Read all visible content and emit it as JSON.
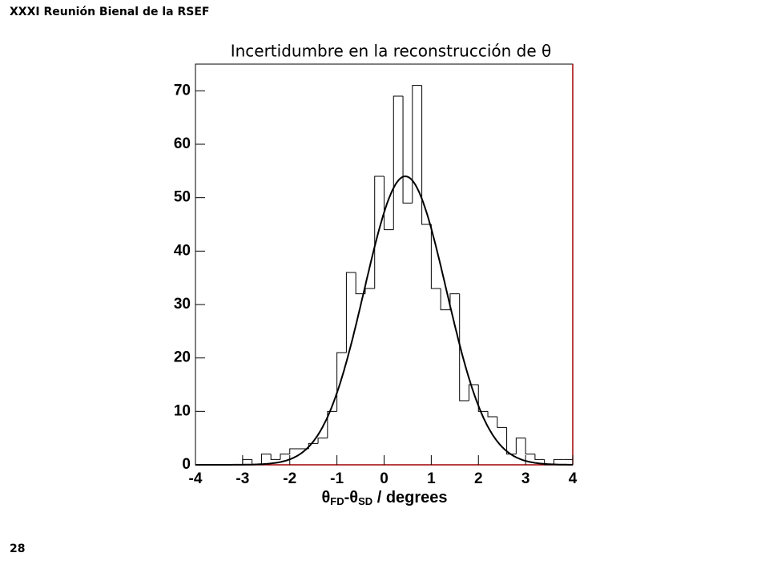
{
  "header": "XXXI Reunión Bienal de la RSEF",
  "page_number": "28",
  "chart_data": {
    "type": "histogram",
    "title": "Incertidumbre en la reconstrucción de θ",
    "xlabel": [
      "θ",
      "FD",
      "-θ",
      "SD",
      " / degrees"
    ],
    "bins": [
      -4,
      -3.8,
      -3.6,
      -3.4,
      -3.2,
      -3,
      -2.8,
      -2.6,
      -2.4,
      -2.2,
      -2,
      -1.8,
      -1.6,
      -1.4,
      -1.2,
      -1,
      -0.8,
      -0.6,
      -0.4,
      -0.2,
      0,
      0.2,
      0.4,
      0.6,
      0.8,
      1,
      1.2,
      1.4,
      1.6,
      1.8,
      2,
      2.2,
      2.4,
      2.6,
      2.8,
      3,
      3.2,
      3.4,
      3.6,
      3.8,
      4
    ],
    "values": [
      0,
      0,
      0,
      0,
      0,
      1,
      0,
      2,
      1,
      2,
      3,
      3,
      4,
      5,
      10,
      21,
      36,
      32,
      33,
      54,
      44,
      69,
      49,
      71,
      45,
      33,
      29,
      32,
      12,
      15,
      10,
      9,
      7,
      2,
      5,
      2,
      1,
      0,
      1,
      1
    ],
    "fit": {
      "constant": 54,
      "mean": 0.45,
      "sigma": 0.87
    },
    "color": "#000000",
    "xlim": [
      -4,
      4
    ],
    "xticks": [
      -4,
      -3,
      -2,
      -1,
      0,
      1,
      2,
      3,
      4
    ],
    "ylim": [
      0,
      75
    ],
    "yticks": [
      0,
      10,
      20,
      30,
      40,
      50,
      60,
      70
    ]
  }
}
